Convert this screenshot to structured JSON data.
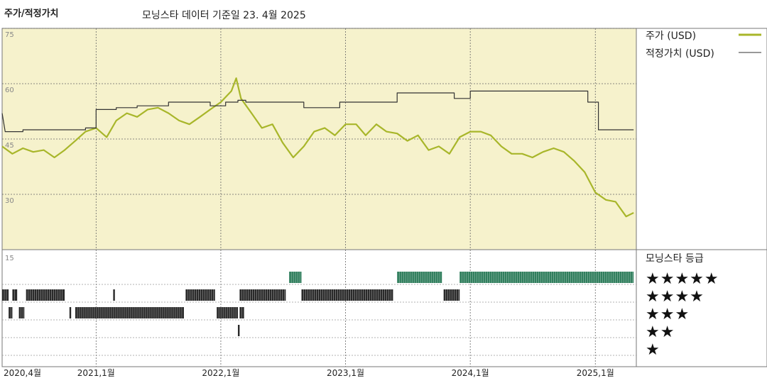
{
  "header": {
    "title": "주가/적정가치",
    "subtitle": "모닝스타 데이터 기준일 23. 4월 2025"
  },
  "colors": {
    "plot_bg": "#f6f2cc",
    "price_line": "#a8b62a",
    "fair_line": "#333333",
    "grid": "#666666",
    "rating_current": "#2e7d5b",
    "rating_past": "#2a2a2a"
  },
  "legend": {
    "price_label": "주가 (USD)",
    "fair_label": "적정가치 (USD)",
    "ratings_title": "모닝스타 등급",
    "star_rows": [
      "★★★★★",
      "★★★★",
      "★★★",
      "★★",
      "★"
    ]
  },
  "chart_data": {
    "type": "line",
    "x_range": [
      "2020-04",
      "2025-04"
    ],
    "y_range": [
      15,
      75
    ],
    "y_ticks": [
      "75",
      "60",
      "45",
      "30",
      "15"
    ],
    "x_ticks": [
      "2020,4월",
      "2021,1월",
      "2022,1월",
      "2023,1월",
      "2024,1월",
      "2025,1월"
    ],
    "grid": true,
    "legend_position": "right",
    "series": [
      {
        "name": "주가 (USD)",
        "points": [
          [
            "2020-04-01",
            43
          ],
          [
            "2020-05-01",
            41
          ],
          [
            "2020-06-01",
            42.5
          ],
          [
            "2020-07-01",
            41.5
          ],
          [
            "2020-08-01",
            42
          ],
          [
            "2020-09-01",
            40
          ],
          [
            "2020-10-01",
            42
          ],
          [
            "2020-11-01",
            44.5
          ],
          [
            "2020-12-01",
            47
          ],
          [
            "2021-01-01",
            48
          ],
          [
            "2021-02-01",
            45.5
          ],
          [
            "2021-03-01",
            50
          ],
          [
            "2021-04-01",
            52
          ],
          [
            "2021-05-01",
            51
          ],
          [
            "2021-06-01",
            53
          ],
          [
            "2021-07-01",
            53.5
          ],
          [
            "2021-08-01",
            52
          ],
          [
            "2021-09-01",
            50
          ],
          [
            "2021-10-01",
            49
          ],
          [
            "2021-11-01",
            51
          ],
          [
            "2021-12-01",
            53
          ],
          [
            "2022-01-01",
            55
          ],
          [
            "2022-02-01",
            58
          ],
          [
            "2022-02-15",
            61.5
          ],
          [
            "2022-03-01",
            56
          ],
          [
            "2022-04-01",
            52
          ],
          [
            "2022-05-01",
            48
          ],
          [
            "2022-06-01",
            49
          ],
          [
            "2022-07-01",
            44
          ],
          [
            "2022-08-01",
            40
          ],
          [
            "2022-09-01",
            43
          ],
          [
            "2022-10-01",
            47
          ],
          [
            "2022-11-01",
            48
          ],
          [
            "2022-12-01",
            46
          ],
          [
            "2023-01-01",
            49
          ],
          [
            "2023-02-01",
            49
          ],
          [
            "2023-03-01",
            46
          ],
          [
            "2023-04-01",
            49
          ],
          [
            "2023-05-01",
            47
          ],
          [
            "2023-06-01",
            46.5
          ],
          [
            "2023-07-01",
            44.5
          ],
          [
            "2023-08-01",
            46
          ],
          [
            "2023-09-01",
            42
          ],
          [
            "2023-10-01",
            43
          ],
          [
            "2023-11-01",
            41
          ],
          [
            "2023-12-01",
            45.5
          ],
          [
            "2024-01-01",
            47
          ],
          [
            "2024-02-01",
            47
          ],
          [
            "2024-03-01",
            46
          ],
          [
            "2024-04-01",
            43
          ],
          [
            "2024-05-01",
            41
          ],
          [
            "2024-06-01",
            41
          ],
          [
            "2024-07-01",
            40
          ],
          [
            "2024-08-01",
            41.5
          ],
          [
            "2024-09-01",
            42.5
          ],
          [
            "2024-10-01",
            41.5
          ],
          [
            "2024-11-01",
            39
          ],
          [
            "2024-12-01",
            36
          ],
          [
            "2025-01-01",
            30.5
          ],
          [
            "2025-02-01",
            28.5
          ],
          [
            "2025-03-01",
            28
          ],
          [
            "2025-04-01",
            24
          ],
          [
            "2025-04-23",
            25
          ]
        ]
      },
      {
        "name": "적정가치 (USD)",
        "points": [
          [
            "2020-04-01",
            52
          ],
          [
            "2020-04-10",
            47
          ],
          [
            "2020-06-01",
            47
          ],
          [
            "2020-06-01",
            47.5
          ],
          [
            "2020-12-01",
            47.5
          ],
          [
            "2020-12-01",
            48
          ],
          [
            "2021-01-01",
            48
          ],
          [
            "2021-01-01",
            53
          ],
          [
            "2021-03-01",
            53
          ],
          [
            "2021-03-01",
            53.5
          ],
          [
            "2021-05-01",
            53.5
          ],
          [
            "2021-05-01",
            54
          ],
          [
            "2021-08-01",
            54
          ],
          [
            "2021-08-01",
            55
          ],
          [
            "2021-12-01",
            55
          ],
          [
            "2021-12-01",
            54
          ],
          [
            "2022-01-15",
            54
          ],
          [
            "2022-01-15",
            55
          ],
          [
            "2022-02-20",
            55
          ],
          [
            "2022-02-20",
            55.5
          ],
          [
            "2022-03-15",
            55.5
          ],
          [
            "2022-03-15",
            55
          ],
          [
            "2022-09-01",
            55
          ],
          [
            "2022-09-01",
            53.5
          ],
          [
            "2022-12-15",
            53.5
          ],
          [
            "2022-12-15",
            55
          ],
          [
            "2023-06-01",
            55
          ],
          [
            "2023-06-01",
            57.5
          ],
          [
            "2023-11-15",
            57.5
          ],
          [
            "2023-11-15",
            56
          ],
          [
            "2024-01-01",
            56
          ],
          [
            "2024-01-01",
            58
          ],
          [
            "2024-12-10",
            58
          ],
          [
            "2024-12-10",
            55
          ],
          [
            "2025-01-10",
            55
          ],
          [
            "2025-01-10",
            47.5
          ],
          [
            "2025-04-23",
            47.5
          ]
        ]
      }
    ],
    "ratings": [
      {
        "stars": 5,
        "color": "current",
        "ranges": [
          [
            "2022-07-20",
            "2022-08-25"
          ],
          [
            "2023-06-01",
            "2023-10-10"
          ],
          [
            "2023-12-01",
            "2025-04-23"
          ]
        ]
      },
      {
        "stars": 4,
        "color": "past",
        "ranges": [
          [
            "2020-04-01",
            "2020-04-20"
          ],
          [
            "2020-05-01",
            "2020-05-15"
          ],
          [
            "2020-06-10",
            "2020-10-01"
          ],
          [
            "2021-02-20",
            "2021-02-25"
          ],
          [
            "2021-09-20",
            "2021-12-15"
          ],
          [
            "2022-02-25",
            "2022-07-10"
          ],
          [
            "2022-08-25",
            "2023-05-20"
          ],
          [
            "2023-10-15",
            "2023-12-01"
          ]
        ]
      },
      {
        "stars": 3,
        "color": "past",
        "ranges": [
          [
            "2020-04-20",
            "2020-05-01"
          ],
          [
            "2020-05-20",
            "2020-06-05"
          ],
          [
            "2020-10-15",
            "2020-10-20"
          ],
          [
            "2020-11-01",
            "2021-09-15"
          ],
          [
            "2021-12-20",
            "2022-02-20"
          ],
          [
            "2022-02-25",
            "2022-03-10"
          ]
        ]
      },
      {
        "stars": 2,
        "color": "past",
        "ranges": [
          [
            "2022-02-20",
            "2022-02-25"
          ]
        ]
      },
      {
        "stars": 1,
        "color": "past",
        "ranges": []
      }
    ]
  }
}
